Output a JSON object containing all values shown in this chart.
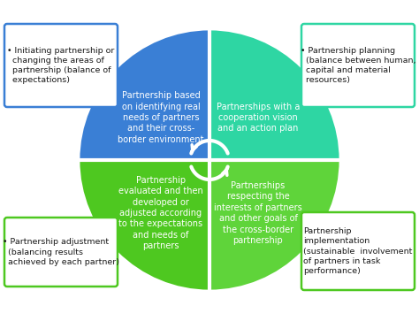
{
  "bg_color": "#ffffff",
  "quadrant_colors": {
    "top_left": "#3a7fd5",
    "top_right": "#2ed6a3",
    "bottom_left": "#4ec820",
    "bottom_right": "#5fd43a"
  },
  "quadrant_texts": {
    "top_left": "Partnership based\non identifying real\nneeds of partners\nand their cross-\nborder environment",
    "top_right": "Partnerships with a\ncooperation vision\nand an action plan",
    "bottom_left": "Partnership\nevaluated and then\ndeveloped or\nadjusted according\nto the expectations\nand needs of\npartners",
    "bottom_right": "Partnerships\nrespecting the\ninterests of partners\nand other goals of\nthe cross-border\npartnership"
  },
  "box_texts": {
    "top_left": "• Initiating partnership or\n  changing the areas of\n  partnership (balance of\n  expectations)",
    "top_right": "• Partnership planning\n  (balance between human,\n  capital and material\n  resources)",
    "bottom_left": "• Partnership adjustment\n  (balancing results\n  achieved by each partner)",
    "bottom_right": "Partnership\nimplementation\n(sustainable  involvement\nof partners in task\nperformance)"
  },
  "box_border_colors": {
    "top_left": "#3a7fd5",
    "top_right": "#2ed6a3",
    "bottom_left": "#4ec820",
    "bottom_right": "#4ec820"
  },
  "text_color_quadrant": "#ffffff",
  "text_color_box": "#1a1a1a",
  "font_size_quadrant": 7.0,
  "font_size_box": 6.8
}
